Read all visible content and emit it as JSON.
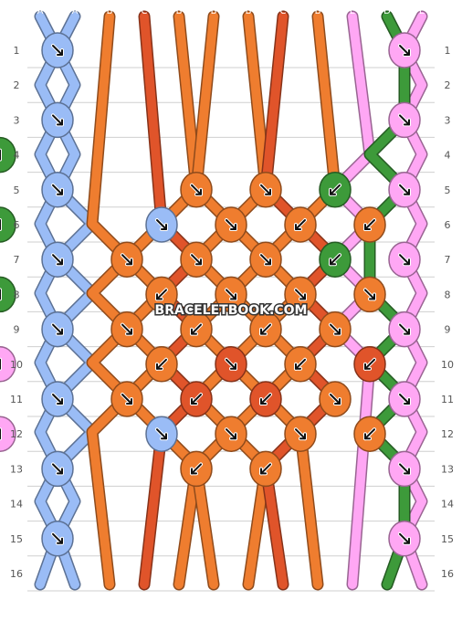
{
  "watermark": "BRACELETBOOK.COM",
  "colors": {
    "A": "#9abcf6",
    "B": "#ef7d2f",
    "C": "#e0542a",
    "D": "#3d9a3a",
    "E": "#ffa7f4"
  },
  "strings_top": [
    "A",
    "A",
    "B",
    "C",
    "B",
    "B",
    "B",
    "C",
    "B",
    "E",
    "D",
    "E"
  ],
  "strings_bottom": [
    "A",
    "A",
    "B",
    "C",
    "B",
    "B",
    "B",
    "C",
    "B",
    "E",
    "D",
    "E"
  ],
  "row_labels": [
    "1",
    "2",
    "3",
    "4",
    "5",
    "6",
    "7",
    "8",
    "9",
    "10",
    "11",
    "12",
    "13",
    "14",
    "15",
    "16"
  ],
  "knots": [
    {
      "row": 1,
      "pos": 0,
      "color": "A",
      "arrow": "se"
    },
    {
      "row": 1,
      "pos": 5,
      "color": "E",
      "arrow": "se"
    },
    {
      "row": 3,
      "pos": 0,
      "color": "A",
      "arrow": "se"
    },
    {
      "row": 3,
      "pos": 5,
      "color": "E",
      "arrow": "se"
    },
    {
      "row": 4,
      "pos": 5,
      "color": "D",
      "arrow": "sw"
    },
    {
      "row": 5,
      "pos": 0,
      "color": "A",
      "arrow": "se"
    },
    {
      "row": 5,
      "pos": 2,
      "color": "B",
      "arrow": "se"
    },
    {
      "row": 5,
      "pos": 3,
      "color": "B",
      "arrow": "se"
    },
    {
      "row": 5,
      "pos": 4,
      "color": "D",
      "arrow": "sw"
    },
    {
      "row": 5,
      "pos": 5,
      "color": "E",
      "arrow": "se"
    },
    {
      "row": 6,
      "pos": 1,
      "color": "A",
      "arrow": "se"
    },
    {
      "row": 6,
      "pos": 2,
      "color": "B",
      "arrow": "se"
    },
    {
      "row": 6,
      "pos": 3,
      "color": "B",
      "arrow": "sw"
    },
    {
      "row": 6,
      "pos": 4,
      "color": "B",
      "arrow": "sw"
    },
    {
      "row": 6,
      "pos": 5,
      "color": "D",
      "arrow": "se"
    },
    {
      "row": 7,
      "pos": 0,
      "color": "A",
      "arrow": "se"
    },
    {
      "row": 7,
      "pos": 1,
      "color": "B",
      "arrow": "se"
    },
    {
      "row": 7,
      "pos": 2,
      "color": "B",
      "arrow": "se"
    },
    {
      "row": 7,
      "pos": 3,
      "color": "B",
      "arrow": "se"
    },
    {
      "row": 7,
      "pos": 4,
      "color": "D",
      "arrow": "sw"
    },
    {
      "row": 7,
      "pos": 5,
      "color": "E",
      "arrow": "se"
    },
    {
      "row": 8,
      "pos": 1,
      "color": "B",
      "arrow": "sw"
    },
    {
      "row": 8,
      "pos": 2,
      "color": "B",
      "arrow": "se"
    },
    {
      "row": 8,
      "pos": 3,
      "color": "B",
      "arrow": "se"
    },
    {
      "row": 8,
      "pos": 4,
      "color": "B",
      "arrow": "se"
    },
    {
      "row": 8,
      "pos": 5,
      "color": "D",
      "arrow": "se"
    },
    {
      "row": 9,
      "pos": 0,
      "color": "A",
      "arrow": "se"
    },
    {
      "row": 9,
      "pos": 1,
      "color": "B",
      "arrow": "se"
    },
    {
      "row": 9,
      "pos": 2,
      "color": "B",
      "arrow": "sw"
    },
    {
      "row": 9,
      "pos": 3,
      "color": "B",
      "arrow": "sw"
    },
    {
      "row": 9,
      "pos": 4,
      "color": "B",
      "arrow": "se"
    },
    {
      "row": 9,
      "pos": 5,
      "color": "E",
      "arrow": "se"
    },
    {
      "row": 10,
      "pos": 1,
      "color": "B",
      "arrow": "sw"
    },
    {
      "row": 10,
      "pos": 2,
      "color": "C",
      "arrow": "se"
    },
    {
      "row": 10,
      "pos": 3,
      "color": "B",
      "arrow": "sw"
    },
    {
      "row": 10,
      "pos": 4,
      "color": "C",
      "arrow": "sw"
    },
    {
      "row": 10,
      "pos": 5,
      "color": "E",
      "arrow": "sw"
    },
    {
      "row": 11,
      "pos": 0,
      "color": "A",
      "arrow": "se"
    },
    {
      "row": 11,
      "pos": 1,
      "color": "B",
      "arrow": "se"
    },
    {
      "row": 11,
      "pos": 2,
      "color": "C",
      "arrow": "sw"
    },
    {
      "row": 11,
      "pos": 3,
      "color": "C",
      "arrow": "sw"
    },
    {
      "row": 11,
      "pos": 4,
      "color": "B",
      "arrow": "se"
    },
    {
      "row": 11,
      "pos": 5,
      "color": "E",
      "arrow": "se"
    },
    {
      "row": 12,
      "pos": 1,
      "color": "A",
      "arrow": "se"
    },
    {
      "row": 12,
      "pos": 2,
      "color": "B",
      "arrow": "se"
    },
    {
      "row": 12,
      "pos": 3,
      "color": "B",
      "arrow": "se"
    },
    {
      "row": 12,
      "pos": 4,
      "color": "B",
      "arrow": "sw"
    },
    {
      "row": 12,
      "pos": 5,
      "color": "E",
      "arrow": "se"
    },
    {
      "row": 13,
      "pos": 0,
      "color": "A",
      "arrow": "se"
    },
    {
      "row": 13,
      "pos": 2,
      "color": "B",
      "arrow": "sw"
    },
    {
      "row": 13,
      "pos": 3,
      "color": "B",
      "arrow": "sw"
    },
    {
      "row": 13,
      "pos": 5,
      "color": "E",
      "arrow": "se"
    },
    {
      "row": 15,
      "pos": 0,
      "color": "A",
      "arrow": "se"
    },
    {
      "row": 15,
      "pos": 5,
      "color": "E",
      "arrow": "se"
    }
  ]
}
